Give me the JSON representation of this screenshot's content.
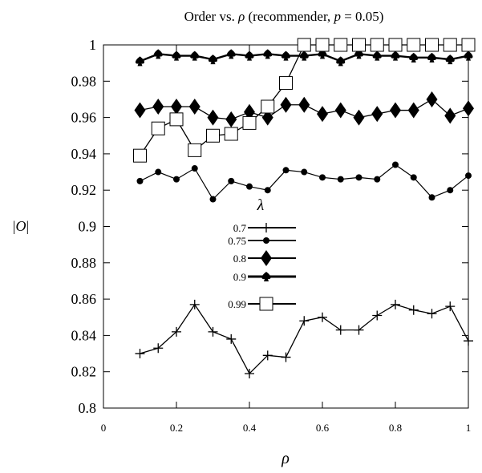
{
  "chart_data": {
    "type": "line",
    "title": "Order vs. ρ (recommender, p = 0.05)",
    "xlabel": "ρ",
    "ylabel": "|O|",
    "xlim": [
      0,
      1
    ],
    "ylim": [
      0.8,
      1
    ],
    "xticks": [
      "0",
      "0.2",
      "0.4",
      "0.6",
      "0.8",
      "1"
    ],
    "yticks": [
      "0.8",
      "0.82",
      "0.84",
      "0.86",
      "0.88",
      "0.9",
      "0.92",
      "0.94",
      "0.96",
      "0.98",
      "1"
    ],
    "legend_title": "λ",
    "legend_position": "center",
    "x": [
      0.1,
      0.15,
      0.2,
      0.25,
      0.3,
      0.35,
      0.4,
      0.45,
      0.5,
      0.55,
      0.6,
      0.65,
      0.7,
      0.75,
      0.8,
      0.85,
      0.9,
      0.95,
      1.0
    ],
    "series": [
      {
        "name": "0.7",
        "marker": "plus",
        "values": [
          0.83,
          0.833,
          0.842,
          0.857,
          0.842,
          0.838,
          0.819,
          0.829,
          0.828,
          0.848,
          0.85,
          0.843,
          0.843,
          0.851,
          0.857,
          0.854,
          0.852,
          0.856,
          0.837
        ]
      },
      {
        "name": "0.75",
        "marker": "dot",
        "values": [
          0.925,
          0.93,
          0.926,
          0.932,
          0.915,
          0.925,
          0.922,
          0.92,
          0.931,
          0.93,
          0.927,
          0.926,
          0.927,
          0.926,
          0.934,
          0.927,
          0.916,
          0.92,
          0.928
        ]
      },
      {
        "name": "0.8",
        "marker": "diamond",
        "values": [
          0.964,
          0.966,
          0.966,
          0.966,
          0.96,
          0.959,
          0.963,
          0.96,
          0.967,
          0.967,
          0.962,
          0.964,
          0.96,
          0.962,
          0.964,
          0.964,
          0.97,
          0.961,
          0.965
        ]
      },
      {
        "name": "0.9",
        "marker": "spade",
        "values": [
          0.991,
          0.995,
          0.994,
          0.994,
          0.992,
          0.995,
          0.994,
          0.995,
          0.994,
          0.994,
          0.995,
          0.991,
          0.995,
          0.994,
          0.994,
          0.993,
          0.993,
          0.992,
          0.994
        ]
      },
      {
        "name": "0.99",
        "marker": "square",
        "values": [
          0.939,
          0.954,
          0.959,
          0.942,
          0.95,
          0.951,
          0.957,
          0.966,
          0.979,
          1.0,
          1.0,
          1.0,
          1.0,
          1.0,
          1.0,
          1.0,
          1.0,
          1.0,
          1.0
        ]
      }
    ]
  }
}
